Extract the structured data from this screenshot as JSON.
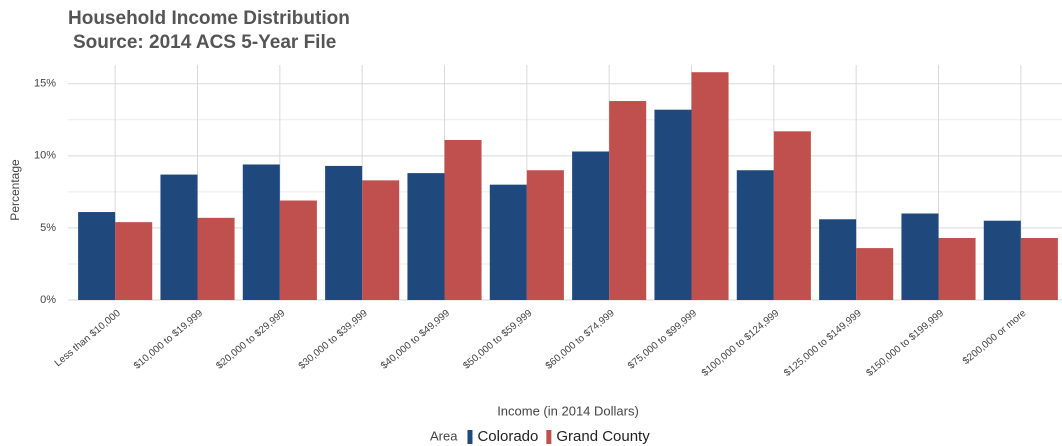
{
  "chart_data": {
    "type": "bar",
    "title": "Household Income Distribution",
    "subtitle": "Source: 2014 ACS 5-Year File",
    "x_label": "Income (in 2014 Dollars)",
    "y_label": "Percentage",
    "legend_title": "Area",
    "categories": [
      "Less than $10,000",
      "$10,000 to $19,999",
      "$20,000 to $29,999",
      "$30,000 to $39,999",
      "$40,000 to $49,999",
      "$50,000 to $59,999",
      "$60,000 to $74,999",
      "$75,000 to $99,999",
      "$100,000 to $124,999",
      "$125,000 to $149,999",
      "$150,000 to $199,999",
      "$200,000 or more"
    ],
    "series": [
      {
        "name": "Colorado",
        "color": "#1f497d",
        "values": [
          6.1,
          8.7,
          9.4,
          9.3,
          8.8,
          8.0,
          10.3,
          13.2,
          9.0,
          5.6,
          6.0,
          5.5
        ]
      },
      {
        "name": "Grand County",
        "color": "#c0504d",
        "values": [
          5.4,
          5.7,
          6.9,
          8.3,
          11.1,
          9.0,
          13.8,
          15.8,
          11.7,
          3.6,
          4.3,
          4.3
        ]
      }
    ],
    "ylim": [
      0,
      16.3
    ],
    "yticks": [
      {
        "value": 0,
        "label": "0%"
      },
      {
        "value": 5,
        "label": "5%"
      },
      {
        "value": 10,
        "label": "10%"
      },
      {
        "value": 15,
        "label": "15%"
      }
    ],
    "minor_yticks": [
      2.5,
      7.5,
      12.5
    ],
    "grid": true,
    "legend_position": "bottom"
  }
}
